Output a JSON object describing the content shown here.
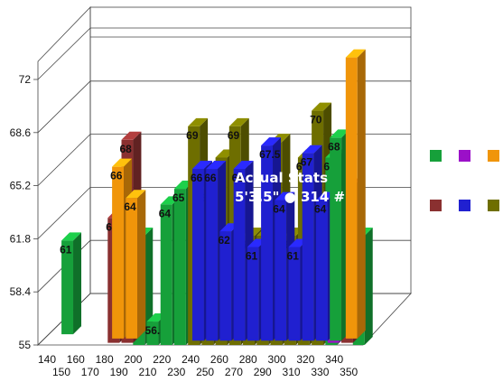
{
  "chart_data": {
    "type": "bar",
    "variant": "3d-stacked-depth",
    "ylim": [
      55,
      74
    ],
    "ytick_labels": [
      "55",
      "58.4",
      "61.8",
      "65.2",
      "68.6",
      "72"
    ],
    "xtick_labels_top": [
      "140",
      "160",
      "180",
      "200",
      "220",
      "240",
      "260",
      "280",
      "300",
      "320",
      "340"
    ],
    "xtick_labels_bottom": [
      "150",
      "170",
      "190",
      "210",
      "230",
      "250",
      "270",
      "290",
      "310",
      "330",
      "350"
    ],
    "legend": {
      "placement": "right",
      "swatches": [
        "#16a03a",
        "#9b10c8",
        "#f0950a",
        "#8a3030",
        "#2020d0",
        "#6e6e00"
      ]
    },
    "annotation": {
      "line1": "Actual Stats",
      "line2": "5'3.5\" ● 314 #"
    },
    "bars": [
      {
        "cat": 0,
        "row": 0,
        "value": 61,
        "label": "61",
        "color": "#16a03a"
      },
      {
        "cat": 4,
        "row": 4,
        "value": 63,
        "label": "63",
        "color": "#8a3030"
      },
      {
        "cat": 4,
        "row": 2,
        "value": 66,
        "label": "66",
        "color": "#f0950a"
      },
      {
        "cat": 5,
        "row": 4,
        "value": 68,
        "label": "68",
        "color": "#8a3030"
      },
      {
        "cat": 5,
        "row": 2,
        "value": 64,
        "label": "64",
        "color": "#f0950a"
      },
      {
        "cat": 6,
        "row": 5,
        "value": 62,
        "label": "62",
        "color": "#16a03a"
      },
      {
        "cat": 7,
        "row": 5,
        "value": 56.5,
        "label": "56.5",
        "color": "#16a03a"
      },
      {
        "cat": 8,
        "row": 5,
        "value": 64,
        "label": "64",
        "color": "#16a03a"
      },
      {
        "cat": 9,
        "row": 5,
        "value": 65,
        "label": "65",
        "color": "#16a03a"
      },
      {
        "cat": 10,
        "row": 5,
        "value": 69,
        "label": "69",
        "color": "#6e6e00"
      },
      {
        "cat": 10,
        "row": 3,
        "value": 66,
        "label": "66",
        "color": "#2020d0"
      },
      {
        "cat": 11,
        "row": 5,
        "value": 65,
        "label": "65",
        "color": "#6e6e00"
      },
      {
        "cat": 11,
        "row": 3,
        "value": 66,
        "label": "66",
        "color": "#2020d0"
      },
      {
        "cat": 12,
        "row": 5,
        "value": 67,
        "label": "67",
        "color": "#6e6e00"
      },
      {
        "cat": 12,
        "row": 3,
        "value": 62,
        "label": "62",
        "color": "#2020d0"
      },
      {
        "cat": 13,
        "row": 5,
        "value": 69,
        "label": "69",
        "color": "#6e6e00"
      },
      {
        "cat": 13,
        "row": 3,
        "value": 66,
        "label": "66",
        "color": "#2020d0"
      },
      {
        "cat": 14,
        "row": 5,
        "value": 62,
        "label": "62",
        "color": "#6e6e00"
      },
      {
        "cat": 14,
        "row": 3,
        "value": 61,
        "label": "61",
        "color": "#2020d0"
      },
      {
        "cat": 15,
        "row": 5,
        "value": 62,
        "label": "62",
        "color": "#6e6e00"
      },
      {
        "cat": 15,
        "row": 3,
        "value": 67.5,
        "label": "67.5",
        "color": "#2020d0"
      },
      {
        "cat": 16,
        "row": 5,
        "value": 68,
        "label": "68",
        "color": "#6e6e00"
      },
      {
        "cat": 16,
        "row": 3,
        "value": 64,
        "label": "64",
        "color": "#2020d0"
      },
      {
        "cat": 17,
        "row": 5,
        "value": 62,
        "label": "62",
        "color": "#6e6e00"
      },
      {
        "cat": 17,
        "row": 3,
        "value": 61,
        "label": "61",
        "color": "#2020d0"
      },
      {
        "cat": 18,
        "row": 5,
        "value": 67,
        "label": "67",
        "color": "#6e6e00"
      },
      {
        "cat": 18,
        "row": 3,
        "value": 67,
        "label": "67",
        "color": "#2020d0"
      },
      {
        "cat": 19,
        "row": 5,
        "value": 70,
        "label": "70",
        "color": "#6e6e00"
      },
      {
        "cat": 19,
        "row": 3,
        "value": 64,
        "label": "64",
        "color": "#2020d0"
      },
      {
        "cat": 20,
        "row": 5,
        "value": 67,
        "label": "67",
        "color": "#16a03a"
      },
      {
        "cat": 20,
        "row": 3,
        "value": 68,
        "label": "68",
        "color": "#16a03a"
      },
      {
        "cat": 20,
        "row": 4,
        "value": 64.5,
        "label": "64.5",
        "color": "#9b10c8"
      },
      {
        "cat": 21,
        "row": 4,
        "value": 65,
        "label": "",
        "color": "#8a3030"
      },
      {
        "cat": 21,
        "row": 2,
        "value": 73,
        "label": "",
        "color": "#f0950a"
      },
      {
        "cat": 22,
        "row": 5,
        "value": 62,
        "label": "62",
        "color": "#16a03a"
      }
    ]
  }
}
